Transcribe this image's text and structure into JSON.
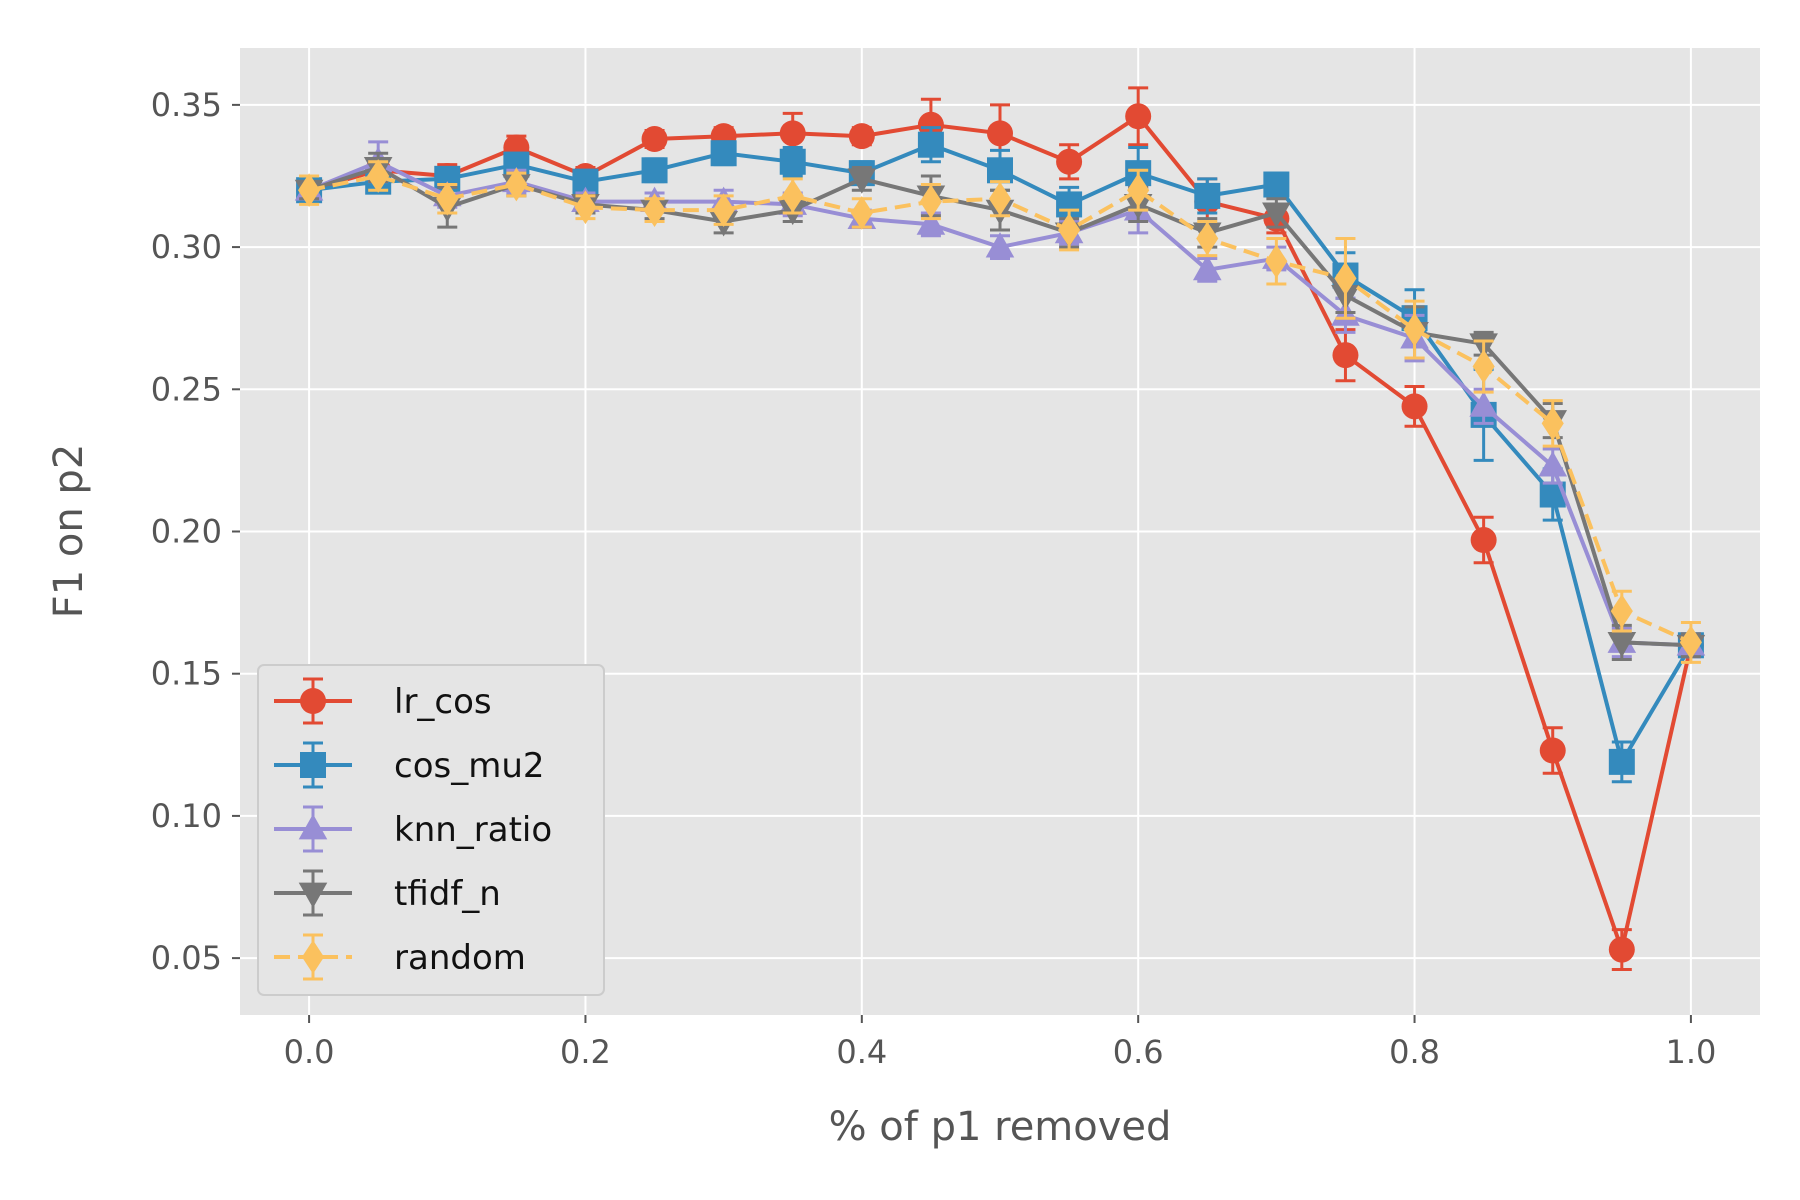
{
  "chart_data": {
    "type": "line",
    "title": "",
    "xlabel": "% of p1 removed",
    "ylabel": "F1 on p2",
    "xlim": [
      -0.05,
      1.05
    ],
    "ylim": [
      0.03,
      0.37
    ],
    "xticks": [
      0.0,
      0.2,
      0.4,
      0.6,
      0.8,
      1.0
    ],
    "xtick_labels": [
      "0.0",
      "0.2",
      "0.4",
      "0.6",
      "0.8",
      "1.0"
    ],
    "yticks": [
      0.05,
      0.1,
      0.15,
      0.2,
      0.25,
      0.3,
      0.35
    ],
    "ytick_labels": [
      "0.05",
      "0.10",
      "0.15",
      "0.20",
      "0.25",
      "0.30",
      "0.35"
    ],
    "grid": true,
    "legend_position": "lower-left",
    "x": [
      0.0,
      0.05,
      0.1,
      0.15,
      0.2,
      0.25,
      0.3,
      0.35,
      0.4,
      0.45,
      0.5,
      0.55,
      0.6,
      0.65,
      0.7,
      0.75,
      0.8,
      0.85,
      0.9,
      0.95,
      1.0
    ],
    "series": [
      {
        "name": "lr_cos",
        "color": "#E24A33",
        "marker": "circle",
        "dashed": false,
        "values": [
          0.32,
          0.327,
          0.325,
          0.335,
          0.325,
          0.338,
          0.339,
          0.34,
          0.339,
          0.343,
          0.34,
          0.33,
          0.346,
          0.316,
          0.31,
          0.262,
          0.244,
          0.197,
          0.123,
          0.053,
          0.16
        ],
        "errors": [
          0.003,
          0.004,
          0.004,
          0.004,
          0.003,
          0.003,
          0.003,
          0.007,
          0.003,
          0.009,
          0.01,
          0.006,
          0.01,
          0.008,
          0.005,
          0.009,
          0.007,
          0.008,
          0.008,
          0.007,
          0.004
        ]
      },
      {
        "name": "cos_mu2",
        "color": "#348ABD",
        "marker": "square",
        "dashed": false,
        "values": [
          0.32,
          0.323,
          0.324,
          0.329,
          0.323,
          0.327,
          0.333,
          0.33,
          0.326,
          0.336,
          0.327,
          0.315,
          0.326,
          0.318,
          0.322,
          0.29,
          0.275,
          0.241,
          0.213,
          0.119,
          0.16
        ],
        "errors": [
          0.003,
          0.004,
          0.004,
          0.004,
          0.004,
          0.004,
          0.004,
          0.005,
          0.004,
          0.006,
          0.007,
          0.006,
          0.009,
          0.006,
          0.004,
          0.008,
          0.01,
          0.016,
          0.009,
          0.007,
          0.004
        ]
      },
      {
        "name": "knn_ratio",
        "color": "#988ED5",
        "marker": "triangle-up",
        "dashed": false,
        "values": [
          0.32,
          0.33,
          0.318,
          0.323,
          0.316,
          0.316,
          0.316,
          0.315,
          0.31,
          0.308,
          0.3,
          0.305,
          0.313,
          0.292,
          0.296,
          0.276,
          0.268,
          0.244,
          0.223,
          0.161,
          0.16
        ],
        "errors": [
          0.003,
          0.007,
          0.004,
          0.004,
          0.003,
          0.003,
          0.004,
          0.004,
          0.003,
          0.004,
          0.004,
          0.004,
          0.008,
          0.004,
          0.004,
          0.006,
          0.008,
          0.006,
          0.006,
          0.005,
          0.004
        ]
      },
      {
        "name": "tfidf_n",
        "color": "#777777",
        "marker": "triangle-down",
        "dashed": false,
        "values": [
          0.32,
          0.328,
          0.314,
          0.322,
          0.315,
          0.313,
          0.309,
          0.313,
          0.324,
          0.318,
          0.313,
          0.305,
          0.315,
          0.305,
          0.312,
          0.283,
          0.27,
          0.266,
          0.239,
          0.161,
          0.16
        ],
        "errors": [
          0.003,
          0.005,
          0.007,
          0.004,
          0.003,
          0.003,
          0.004,
          0.004,
          0.004,
          0.007,
          0.007,
          0.005,
          0.006,
          0.005,
          0.005,
          0.006,
          0.009,
          0.004,
          0.006,
          0.006,
          0.004
        ]
      },
      {
        "name": "random",
        "color": "#FBC15E",
        "marker": "diamond",
        "dashed": true,
        "values": [
          0.32,
          0.325,
          0.317,
          0.322,
          0.314,
          0.313,
          0.313,
          0.318,
          0.312,
          0.316,
          0.317,
          0.306,
          0.32,
          0.303,
          0.295,
          0.289,
          0.271,
          0.258,
          0.238,
          0.172,
          0.161
        ],
        "errors": [
          0.005,
          0.005,
          0.005,
          0.004,
          0.004,
          0.004,
          0.005,
          0.006,
          0.005,
          0.006,
          0.006,
          0.007,
          0.007,
          0.006,
          0.008,
          0.014,
          0.01,
          0.009,
          0.008,
          0.007,
          0.007
        ]
      }
    ]
  }
}
